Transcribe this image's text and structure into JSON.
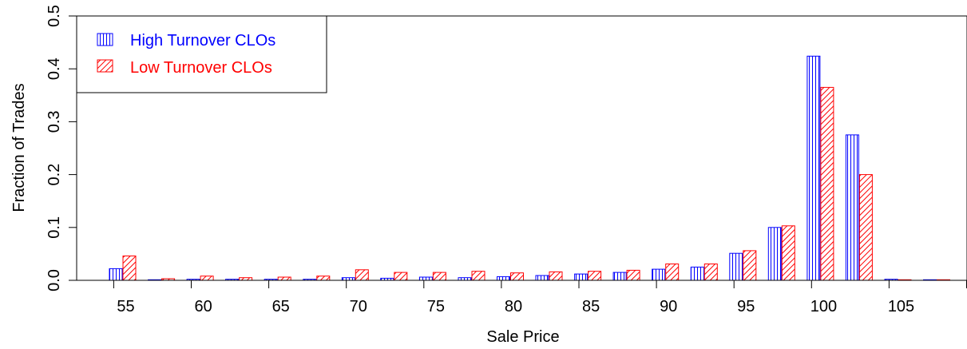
{
  "chart_data": {
    "type": "bar",
    "xlabel": "Sale Price",
    "ylabel": "Fraction of Trades",
    "ylim": [
      0,
      0.5
    ],
    "yticks": [
      "0.0",
      "0.1",
      "0.2",
      "0.3",
      "0.4",
      "0.5"
    ],
    "x_tick_labels": [
      "55",
      "60",
      "65",
      "70",
      "75",
      "80",
      "85",
      "90",
      "95",
      "100",
      "105"
    ],
    "legend_position": "top-left",
    "series": [
      {
        "name": "High Turnover CLOs",
        "color": "#0000ff",
        "pattern": "vertical-lines",
        "values": [
          0.022,
          0.001,
          0.002,
          0.002,
          0.002,
          0.002,
          0.005,
          0.004,
          0.006,
          0.005,
          0.007,
          0.009,
          0.012,
          0.015,
          0.021,
          0.025,
          0.051,
          0.1,
          0.424,
          0.275,
          0.002,
          0.001
        ]
      },
      {
        "name": "Low Turnover CLOs",
        "color": "#ff0000",
        "pattern": "diagonal-lines",
        "values": [
          0.046,
          0.003,
          0.008,
          0.005,
          0.006,
          0.008,
          0.02,
          0.015,
          0.015,
          0.017,
          0.014,
          0.016,
          0.017,
          0.019,
          0.031,
          0.031,
          0.056,
          0.103,
          0.365,
          0.2,
          0.001,
          0.001
        ]
      }
    ]
  }
}
